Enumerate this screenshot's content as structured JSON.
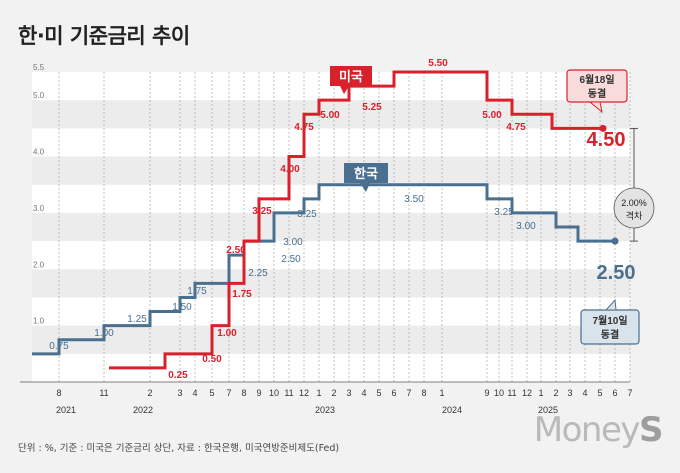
{
  "title": "한·미 기준금리 추이",
  "footer": "단위 : %, 기준 : 미국은 기준금리 상단, 자료 : 한국은행, 미국연방준비제도(Fed)",
  "brand": {
    "prefix": "Money",
    "suffix": "S"
  },
  "colors": {
    "us": "#d9212c",
    "korea": "#4a6f8f",
    "gap_bg": "#e3e3e3"
  },
  "chart_data": {
    "type": "line",
    "step": true,
    "ylim": [
      0,
      5.5
    ],
    "yticks": [
      "1.0",
      "2.0",
      "3.0",
      "4.0",
      "5.0",
      "5.5"
    ],
    "month_ticks": [
      "8",
      "11",
      "2",
      "3",
      "4",
      "5",
      "7",
      "8",
      "9",
      "10",
      "11",
      "12",
      "1",
      "2",
      "3",
      "4",
      "5",
      "6",
      "7",
      "8",
      "1",
      "9",
      "10",
      "11",
      "12",
      "1",
      "2",
      "3",
      "4",
      "5",
      "6",
      "7"
    ],
    "year_labels": [
      "2021",
      "2022",
      "2023",
      "2024",
      "2025"
    ],
    "series": [
      {
        "name": "미국",
        "values": [
          0.25,
          0.5,
          1.0,
          1.75,
          2.5,
          3.25,
          4.0,
          4.75,
          5.0,
          5.25,
          5.5,
          5.0,
          4.75,
          4.5
        ],
        "labels": [
          "0.25",
          "0.50",
          "1.00",
          "1.75",
          "2.50",
          "3.25",
          "4.00",
          "4.75",
          "5.00",
          "5.25",
          "5.50",
          "5.00",
          "4.75",
          "4.50"
        ]
      },
      {
        "name": "한국",
        "values": [
          0.5,
          0.75,
          1.0,
          1.25,
          1.5,
          1.75,
          2.25,
          2.5,
          3.0,
          3.25,
          3.5,
          3.25,
          3.0,
          2.75,
          2.5
        ],
        "labels": [
          "",
          "0.75",
          "1.00",
          "1.25",
          "1.50",
          "1.75",
          "2.25",
          "2.50",
          "3.00",
          "3.25",
          "3.50",
          "3.25",
          "3.00",
          "",
          "2.50"
        ]
      }
    ],
    "annotations": {
      "us_callout": [
        "6월18일",
        "동결"
      ],
      "kr_callout": [
        "7월10일",
        "동결"
      ],
      "gap": [
        "2.00%",
        "격차"
      ]
    }
  }
}
